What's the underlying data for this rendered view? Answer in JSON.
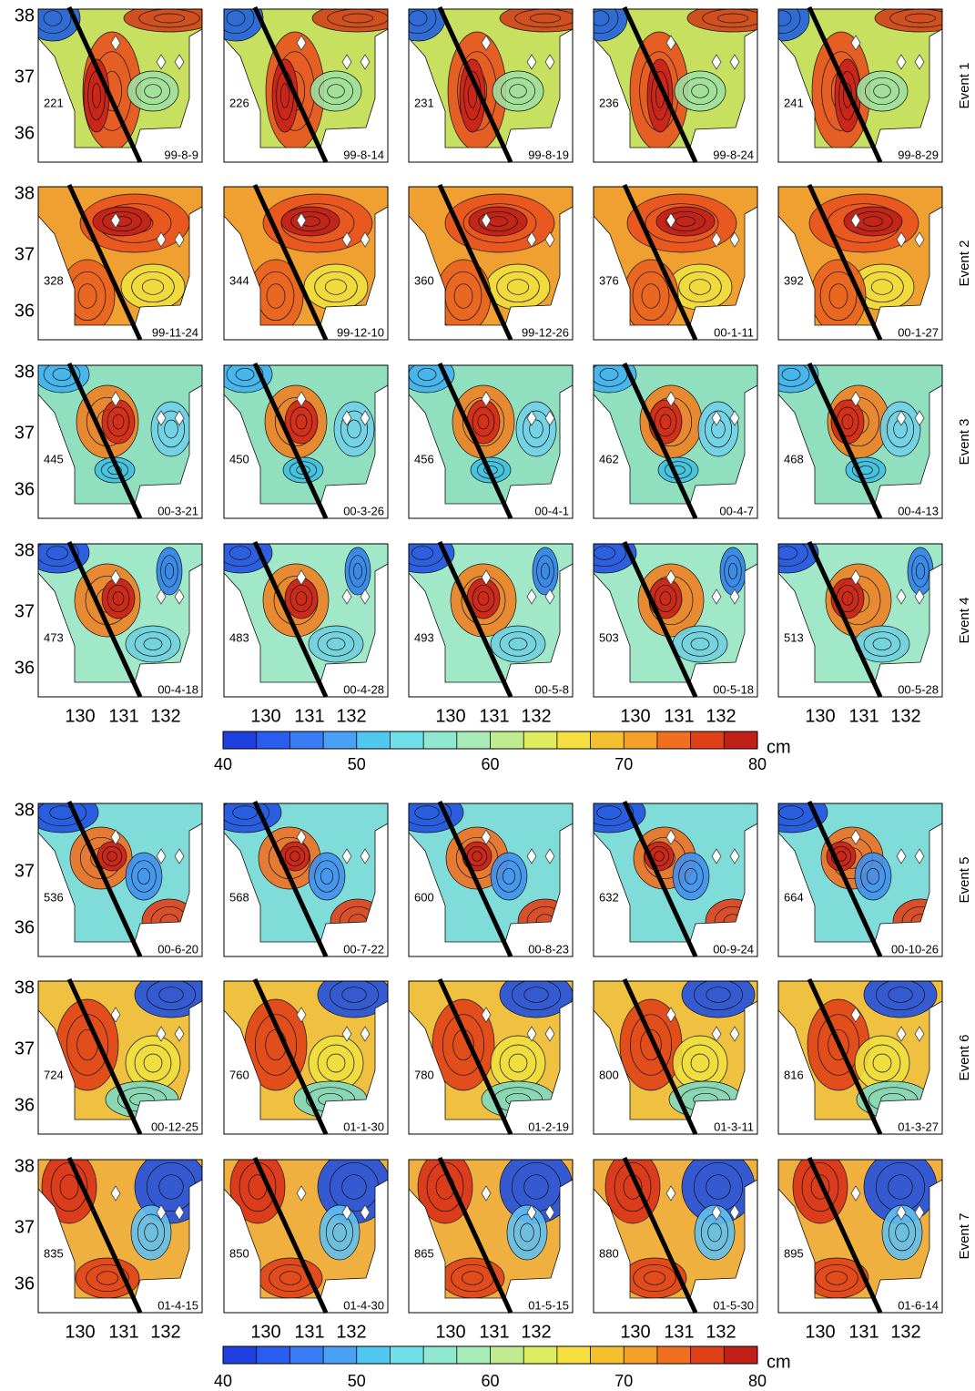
{
  "y_ticks": [
    "38",
    "37",
    "36"
  ],
  "x_ticks": [
    "130",
    "131",
    "132"
  ],
  "events": [
    {
      "label": "Event 1",
      "panels": [
        {
          "day": "221",
          "date": "99-8-9"
        },
        {
          "day": "226",
          "date": "99-8-14"
        },
        {
          "day": "231",
          "date": "99-8-19"
        },
        {
          "day": "236",
          "date": "99-8-24"
        },
        {
          "day": "241",
          "date": "99-8-29"
        }
      ]
    },
    {
      "label": "Event 2",
      "panels": [
        {
          "day": "328",
          "date": "99-11-24"
        },
        {
          "day": "344",
          "date": "99-12-10"
        },
        {
          "day": "360",
          "date": "99-12-26"
        },
        {
          "day": "376",
          "date": "00-1-11"
        },
        {
          "day": "392",
          "date": "00-1-27"
        }
      ]
    },
    {
      "label": "Event 3",
      "panels": [
        {
          "day": "445",
          "date": "00-3-21"
        },
        {
          "day": "450",
          "date": "00-3-26"
        },
        {
          "day": "456",
          "date": "00-4-1"
        },
        {
          "day": "462",
          "date": "00-4-7"
        },
        {
          "day": "468",
          "date": "00-4-13"
        }
      ]
    },
    {
      "label": "Event 4",
      "panels": [
        {
          "day": "473",
          "date": "00-4-18"
        },
        {
          "day": "483",
          "date": "00-4-28"
        },
        {
          "day": "493",
          "date": "00-5-8"
        },
        {
          "day": "503",
          "date": "00-5-18"
        },
        {
          "day": "513",
          "date": "00-5-28"
        }
      ]
    },
    {
      "label": "Event 5",
      "panels": [
        {
          "day": "536",
          "date": "00-6-20"
        },
        {
          "day": "568",
          "date": "00-7-22"
        },
        {
          "day": "600",
          "date": "00-8-23"
        },
        {
          "day": "632",
          "date": "00-9-24"
        },
        {
          "day": "664",
          "date": "00-10-26"
        }
      ]
    },
    {
      "label": "Event 6",
      "panels": [
        {
          "day": "724",
          "date": "00-12-25"
        },
        {
          "day": "760",
          "date": "01-1-30"
        },
        {
          "day": "780",
          "date": "01-2-19"
        },
        {
          "day": "800",
          "date": "01-3-11"
        },
        {
          "day": "816",
          "date": "01-3-27"
        }
      ]
    },
    {
      "label": "Event 7",
      "panels": [
        {
          "day": "835",
          "date": "01-4-15"
        },
        {
          "day": "850",
          "date": "01-4-30"
        },
        {
          "day": "865",
          "date": "01-5-15"
        },
        {
          "day": "880",
          "date": "01-5-30"
        },
        {
          "day": "895",
          "date": "01-6-14"
        }
      ]
    }
  ],
  "colorbars": [
    {
      "ticks": [
        "40",
        "50",
        "60",
        "70",
        "80"
      ],
      "unit": "cm"
    },
    {
      "ticks": [
        "40",
        "50",
        "60",
        "70",
        "80"
      ],
      "unit": "cm"
    }
  ]
}
